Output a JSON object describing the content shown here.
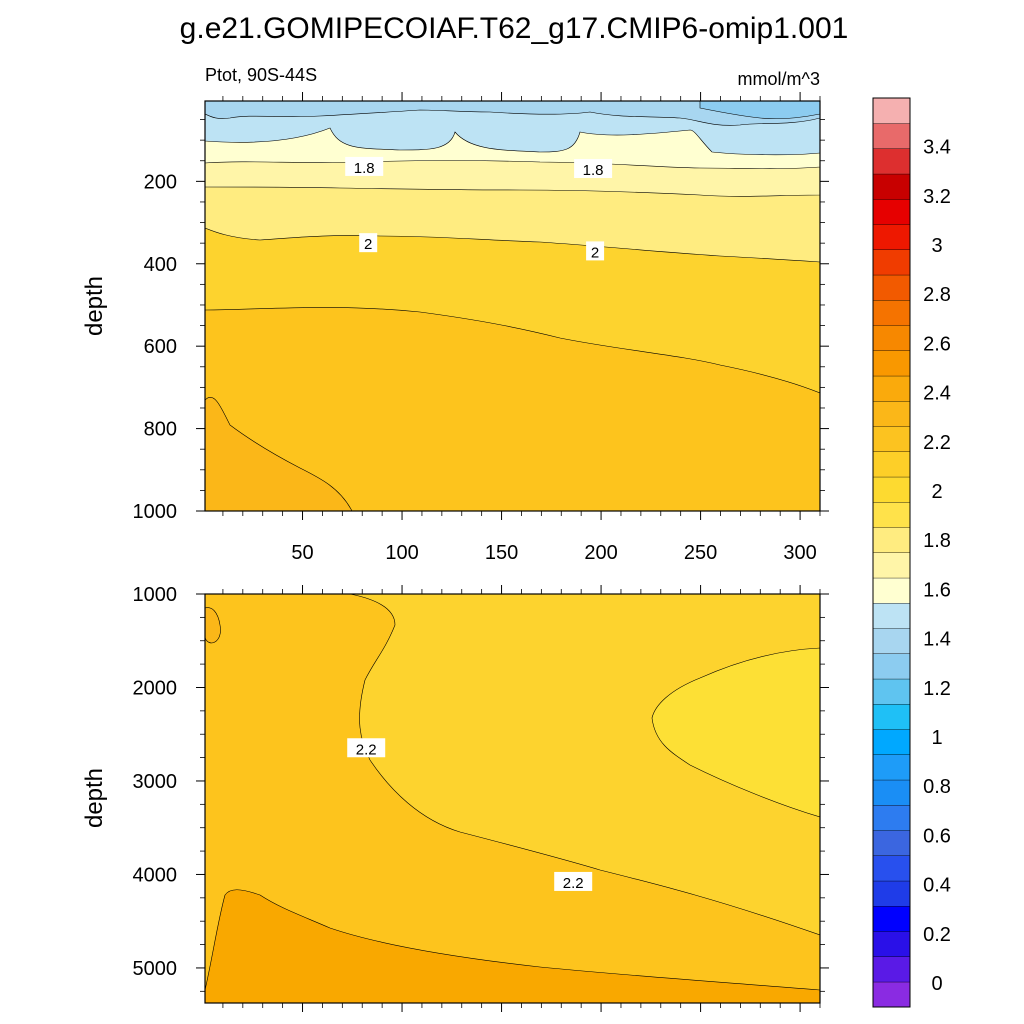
{
  "title": "g.e21.GOMIPECOIAF.T62_g17.CMIP6-omip1.001",
  "region_label": "Ptot, 90S-44S",
  "units_label": "mmol/m^3",
  "colors": {
    "bg": "#ffffff",
    "line": "#000000"
  },
  "chart_data": [
    {
      "type": "contour",
      "panel": "upper",
      "title": "Ptot, 90S-44S",
      "units": "mmol/m^3",
      "xlabel": "",
      "ylabel": "depth",
      "xlim": [
        1,
        310
      ],
      "ylim": [
        1000,
        5
      ],
      "x_ticks": [
        50,
        100,
        150,
        200,
        250,
        300
      ],
      "x_tick_labels": [
        "50",
        "100",
        "150",
        "200",
        "250",
        "300"
      ],
      "y_ticks": [
        200,
        400,
        600,
        800,
        1000
      ],
      "y_tick_labels": [
        "200",
        "400",
        "600",
        "800",
        "1000"
      ],
      "contour_labels": [
        {
          "text": "1.8",
          "x": 81,
          "depth": 165
        },
        {
          "text": "1.8",
          "x": 196,
          "depth": 170
        },
        {
          "text": "2",
          "x": 83,
          "depth": 350
        },
        {
          "text": "2",
          "x": 197,
          "depth": 370
        }
      ]
    },
    {
      "type": "contour",
      "panel": "lower",
      "title": "",
      "units": "mmol/m^3",
      "xlabel": "",
      "ylabel": "depth",
      "xlim": [
        1,
        310
      ],
      "ylim": [
        5375,
        1000
      ],
      "x_ticks": [
        50,
        100,
        150,
        200,
        250,
        300
      ],
      "y_ticks": [
        1000,
        2000,
        3000,
        4000,
        5000
      ],
      "y_tick_labels": [
        "1000",
        "2000",
        "3000",
        "4000",
        "5000"
      ],
      "contour_labels": [
        {
          "text": "2.2",
          "x": 82,
          "depth": 2650
        },
        {
          "text": "2.2",
          "x": 186,
          "depth": 4080
        }
      ]
    },
    {
      "type": "colorbar",
      "levels": [
        0,
        0.2,
        0.4,
        0.6,
        0.8,
        1,
        1.2,
        1.4,
        1.6,
        1.8,
        2,
        2.2,
        2.4,
        2.6,
        2.8,
        3,
        3.2,
        3.4
      ],
      "labels": [
        "0",
        "0.2",
        "0.4",
        "0.6",
        "0.8",
        "1",
        "1.2",
        "1.4",
        "1.6",
        "1.8",
        "2",
        "2.2",
        "2.4",
        "2.6",
        "2.8",
        "3",
        "3.2",
        "3.4"
      ],
      "colors": [
        "#8a2be2",
        "#5a1ae6",
        "#2a10e8",
        "#0000ff",
        "#1f3ce8",
        "#2850ee",
        "#3b66e0",
        "#2d7cf0",
        "#1a8ef5",
        "#1e9cf8",
        "#00a8ff",
        "#1fc0f6",
        "#5fc4f0",
        "#8cccf0",
        "#a8d6f0",
        "#bde3f4",
        "#ffffd1",
        "#fff5a8",
        "#ffec80",
        "#ffe24a",
        "#fdda30",
        "#fdcf28",
        "#fcc320",
        "#fbb718",
        "#faaa0c",
        "#f99800",
        "#f78800",
        "#f57300",
        "#f25a00",
        "#f03c00",
        "#ee1800",
        "#e60000",
        "#c80000",
        "#dd2f2f",
        "#e86a6a",
        "#f5b0b0"
      ]
    }
  ]
}
